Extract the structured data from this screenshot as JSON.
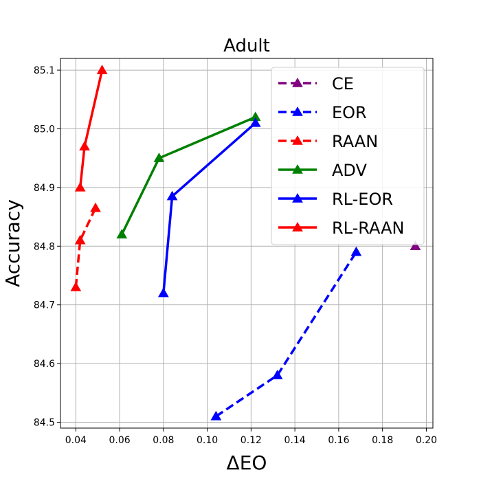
{
  "chart_data": {
    "type": "line",
    "title": "Adult",
    "xlabel": "ΔEO",
    "ylabel": "Accuracy",
    "xlim": [
      0.033,
      0.203
    ],
    "ylim": [
      84.49,
      85.12
    ],
    "xticks": [
      0.04,
      0.06,
      0.08,
      0.1,
      0.12,
      0.14,
      0.16,
      0.18,
      0.2
    ],
    "xtick_labels": [
      "0.04",
      "0.06",
      "0.08",
      "0.10",
      "0.12",
      "0.14",
      "0.16",
      "0.18",
      "0.20"
    ],
    "yticks": [
      84.5,
      84.6,
      84.7,
      84.8,
      84.9,
      85.0,
      85.1
    ],
    "ytick_labels": [
      "84.5",
      "84.6",
      "84.7",
      "84.8",
      "84.9",
      "85.0",
      "85.1"
    ],
    "grid": true,
    "legend_position": "upper-right",
    "series": [
      {
        "name": "CE",
        "color": "#800080",
        "style": "dashed",
        "marker": "triangle",
        "x": [
          0.195
        ],
        "y": [
          84.8
        ]
      },
      {
        "name": "EOR",
        "color": "#0000ff",
        "style": "dashed",
        "marker": "triangle",
        "x": [
          0.104,
          0.132,
          0.168
        ],
        "y": [
          84.51,
          84.58,
          84.79
        ]
      },
      {
        "name": "RAAN",
        "color": "#ff0000",
        "style": "dashed",
        "marker": "triangle",
        "x": [
          0.04,
          0.042,
          0.049
        ],
        "y": [
          84.73,
          84.81,
          84.865
        ]
      },
      {
        "name": "ADV",
        "color": "#008000",
        "style": "solid",
        "marker": "triangle",
        "x": [
          0.061,
          0.078,
          0.122
        ],
        "y": [
          84.82,
          84.95,
          85.02
        ]
      },
      {
        "name": "RL-EOR",
        "color": "#0000ff",
        "style": "solid",
        "marker": "triangle",
        "x": [
          0.08,
          0.084,
          0.122
        ],
        "y": [
          84.72,
          84.885,
          85.01
        ]
      },
      {
        "name": "RL-RAAN",
        "color": "#ff0000",
        "style": "solid",
        "marker": "triangle",
        "x": [
          0.042,
          0.044,
          0.052
        ],
        "y": [
          84.9,
          84.97,
          85.1
        ]
      }
    ]
  }
}
